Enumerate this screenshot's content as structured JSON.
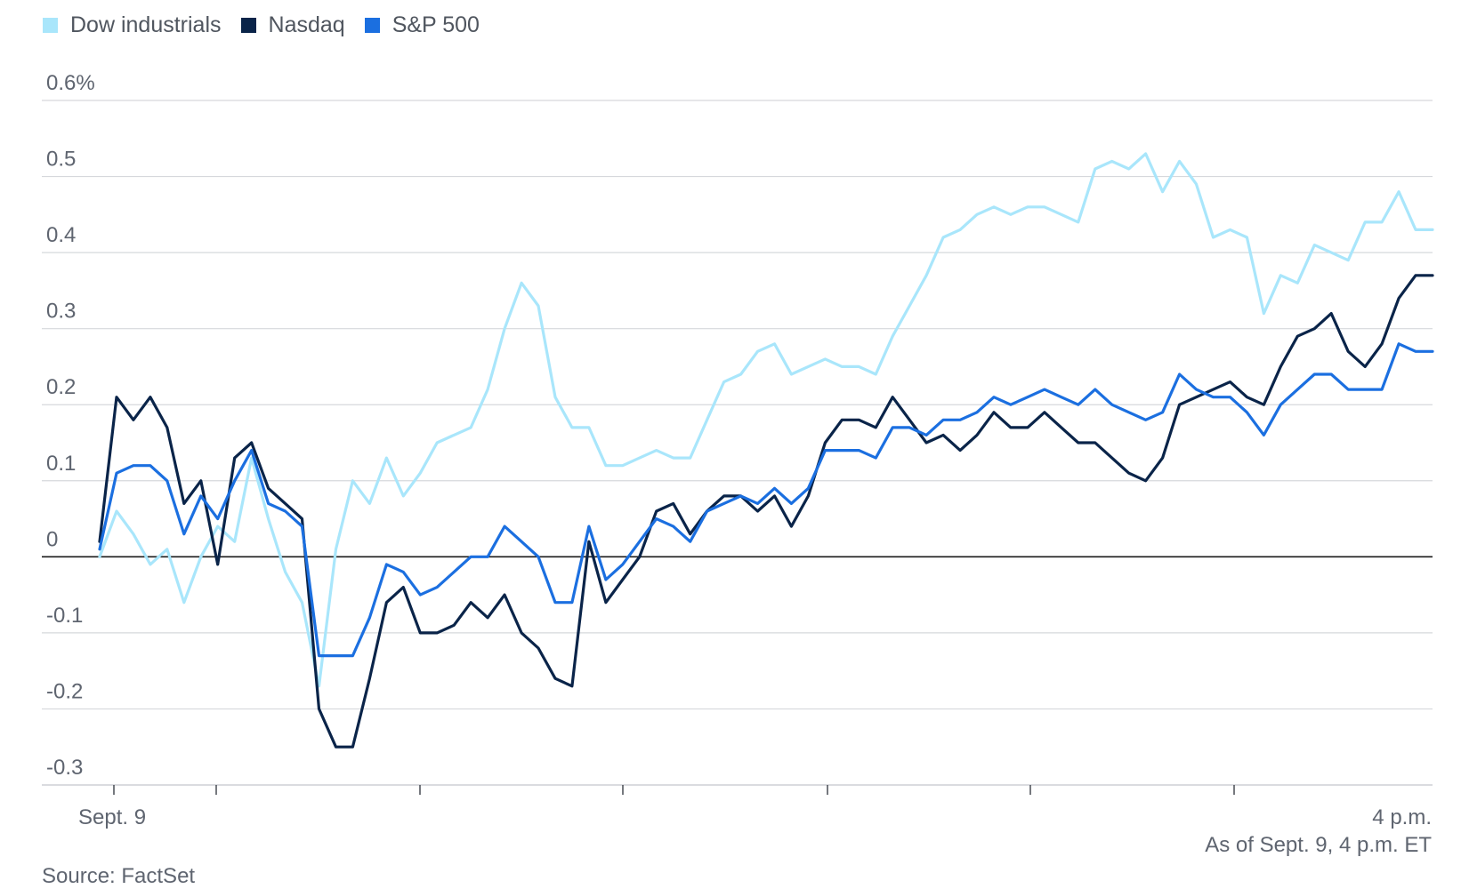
{
  "legend": [
    {
      "name": "Dow industrials",
      "color": "#a9e6fb"
    },
    {
      "name": "Nasdaq",
      "color": "#0a2449"
    },
    {
      "name": "S&P 500",
      "color": "#1b6fe0"
    }
  ],
  "chart_data": {
    "type": "line",
    "x_axis": {
      "first_label": "Sept. 9",
      "last_label": "4 p.m.",
      "start": "9:30",
      "end": "16:00",
      "unit": "time of day (ET)"
    },
    "y_axis": {
      "ylim": [
        -0.3,
        0.6
      ],
      "ticks": [
        "0.6%",
        "0.5",
        "0.4",
        "0.3",
        "0.2",
        "0.1",
        "0",
        "-0.1",
        "-0.2",
        "-0.3"
      ],
      "tick_values": [
        0.6,
        0.5,
        0.4,
        0.3,
        0.2,
        0.1,
        0,
        -0.1,
        -0.2,
        -0.3
      ]
    },
    "grid": true,
    "legend_position": "top-left",
    "series": [
      {
        "name": "Dow industrials",
        "color": "#a9e6fb",
        "values": [
          0.0,
          0.06,
          0.03,
          -0.01,
          0.01,
          -0.06,
          0.0,
          0.04,
          0.02,
          0.13,
          0.05,
          -0.02,
          -0.06,
          -0.17,
          0.01,
          0.1,
          0.07,
          0.13,
          0.08,
          0.11,
          0.15,
          0.16,
          0.17,
          0.22,
          0.3,
          0.36,
          0.33,
          0.21,
          0.17,
          0.17,
          0.12,
          0.12,
          0.13,
          0.14,
          0.13,
          0.13,
          0.18,
          0.23,
          0.24,
          0.27,
          0.28,
          0.24,
          0.25,
          0.26,
          0.25,
          0.25,
          0.24,
          0.29,
          0.33,
          0.37,
          0.42,
          0.43,
          0.45,
          0.46,
          0.45,
          0.46,
          0.46,
          0.45,
          0.44,
          0.51,
          0.52,
          0.51,
          0.53,
          0.48,
          0.52,
          0.49,
          0.42,
          0.43,
          0.42,
          0.32,
          0.37,
          0.36,
          0.41,
          0.4,
          0.39,
          0.44,
          0.44,
          0.48,
          0.43,
          0.43
        ]
      },
      {
        "name": "Nasdaq",
        "color": "#0a2449",
        "values": [
          0.02,
          0.21,
          0.18,
          0.21,
          0.17,
          0.07,
          0.1,
          -0.01,
          0.13,
          0.15,
          0.09,
          0.07,
          0.05,
          -0.2,
          -0.25,
          -0.25,
          -0.16,
          -0.06,
          -0.04,
          -0.1,
          -0.1,
          -0.09,
          -0.06,
          -0.08,
          -0.05,
          -0.1,
          -0.12,
          -0.16,
          -0.17,
          0.02,
          -0.06,
          -0.03,
          0.0,
          0.06,
          0.07,
          0.03,
          0.06,
          0.08,
          0.08,
          0.06,
          0.08,
          0.04,
          0.08,
          0.15,
          0.18,
          0.18,
          0.17,
          0.21,
          0.18,
          0.15,
          0.16,
          0.14,
          0.16,
          0.19,
          0.17,
          0.17,
          0.19,
          0.17,
          0.15,
          0.15,
          0.13,
          0.11,
          0.1,
          0.13,
          0.2,
          0.21,
          0.22,
          0.23,
          0.21,
          0.2,
          0.25,
          0.29,
          0.3,
          0.32,
          0.27,
          0.25,
          0.28,
          0.34,
          0.37,
          0.37
        ]
      },
      {
        "name": "S&P 500",
        "color": "#1b6fe0",
        "values": [
          0.01,
          0.11,
          0.12,
          0.12,
          0.1,
          0.03,
          0.08,
          0.05,
          0.1,
          0.14,
          0.07,
          0.06,
          0.04,
          -0.13,
          -0.13,
          -0.13,
          -0.08,
          -0.01,
          -0.02,
          -0.05,
          -0.04,
          -0.02,
          0.0,
          0.0,
          0.04,
          0.02,
          0.0,
          -0.06,
          -0.06,
          0.04,
          -0.03,
          -0.01,
          0.02,
          0.05,
          0.04,
          0.02,
          0.06,
          0.07,
          0.08,
          0.07,
          0.09,
          0.07,
          0.09,
          0.14,
          0.14,
          0.14,
          0.13,
          0.17,
          0.17,
          0.16,
          0.18,
          0.18,
          0.19,
          0.21,
          0.2,
          0.21,
          0.22,
          0.21,
          0.2,
          0.22,
          0.2,
          0.19,
          0.18,
          0.19,
          0.24,
          0.22,
          0.21,
          0.21,
          0.19,
          0.16,
          0.2,
          0.22,
          0.24,
          0.24,
          0.22,
          0.22,
          0.22,
          0.28,
          0.27,
          0.27
        ]
      }
    ]
  },
  "notes": {
    "as_of": "As of Sept. 9, 4 p.m. ET",
    "source": "Source: FactSet"
  }
}
